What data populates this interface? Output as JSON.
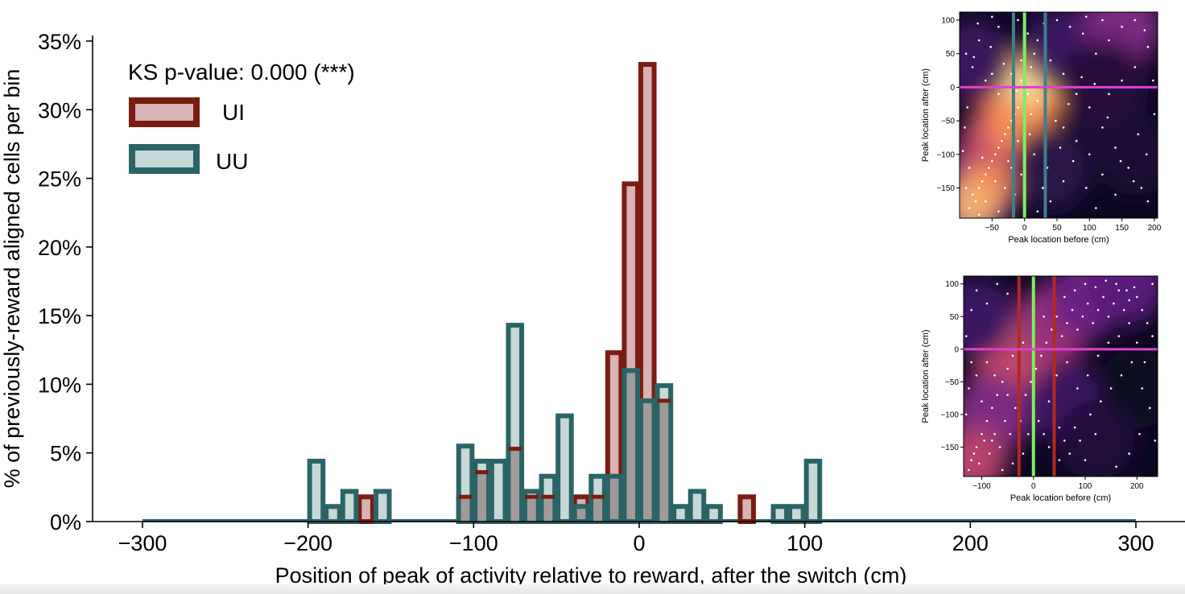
{
  "chart_data": [
    {
      "type": "bar",
      "subtype": "overlapping-histogram",
      "xlabel": "Position of peak of activity relative to reward, after the switch (cm)",
      "ylabel": "% of previously-reward aligned cells per bin",
      "xlim": [
        -300,
        300
      ],
      "ylim": [
        0,
        35
      ],
      "xticks": [
        -300,
        -200,
        -100,
        0,
        100,
        200,
        300
      ],
      "xtick_labels": [
        "−300",
        "−200",
        "−100",
        "0",
        "100",
        "200",
        "300"
      ],
      "yticks": [
        0,
        5,
        10,
        15,
        20,
        25,
        30,
        35
      ],
      "ytick_labels": [
        "0%",
        "5%",
        "10%",
        "15%",
        "20%",
        "25%",
        "30%",
        "35%"
      ],
      "bin_width": 10,
      "annotation": "KS p-value: 0.000 (***)",
      "legend_position": "top-left",
      "grid": false,
      "series": [
        {
          "name": "UI",
          "edge_color": "#7b1c12",
          "fill_color": "#d7b3b3",
          "bars": [
            {
              "x": -165,
              "y": 1.8
            },
            {
              "x": -105,
              "y": 1.8
            },
            {
              "x": -95,
              "y": 3.6
            },
            {
              "x": -75,
              "y": 5.3
            },
            {
              "x": -65,
              "y": 1.8
            },
            {
              "x": -55,
              "y": 1.8
            },
            {
              "x": -35,
              "y": 1.8
            },
            {
              "x": -25,
              "y": 1.8
            },
            {
              "x": -15,
              "y": 12.3
            },
            {
              "x": -5,
              "y": 24.6
            },
            {
              "x": 5,
              "y": 33.3
            },
            {
              "x": 15,
              "y": 8.8
            },
            {
              "x": 65,
              "y": 1.8
            }
          ]
        },
        {
          "name": "UU",
          "edge_color": "#2b6466",
          "fill_color": "#c6d8d8",
          "bars": [
            {
              "x": -195,
              "y": 4.4
            },
            {
              "x": -185,
              "y": 1.1
            },
            {
              "x": -175,
              "y": 2.2
            },
            {
              "x": -155,
              "y": 2.2
            },
            {
              "x": -105,
              "y": 5.5
            },
            {
              "x": -95,
              "y": 4.4
            },
            {
              "x": -85,
              "y": 4.4
            },
            {
              "x": -75,
              "y": 14.3
            },
            {
              "x": -65,
              "y": 2.2
            },
            {
              "x": -55,
              "y": 3.3
            },
            {
              "x": -45,
              "y": 7.7
            },
            {
              "x": -35,
              "y": 1.1
            },
            {
              "x": -25,
              "y": 3.3
            },
            {
              "x": -15,
              "y": 3.3
            },
            {
              "x": -5,
              "y": 11.0
            },
            {
              "x": 5,
              "y": 8.8
            },
            {
              "x": 15,
              "y": 9.9
            },
            {
              "x": 25,
              "y": 1.1
            },
            {
              "x": 35,
              "y": 2.2
            },
            {
              "x": 45,
              "y": 1.1
            },
            {
              "x": 85,
              "y": 1.1
            },
            {
              "x": 95,
              "y": 1.1
            },
            {
              "x": 105,
              "y": 4.4
            }
          ]
        }
      ]
    },
    {
      "type": "heatmap",
      "id": "inset-top",
      "xlabel": "Peak location before (cm)",
      "ylabel": "Peak location after (cm)",
      "xlim": [
        -100,
        205
      ],
      "ylim": [
        -195,
        112
      ],
      "xticks": [
        -50,
        0,
        50,
        100,
        150,
        200
      ],
      "xtick_labels": [
        "−50",
        "0",
        "50",
        "100",
        "150",
        "200"
      ],
      "yticks": [
        100,
        50,
        0,
        -50,
        -100,
        -150
      ],
      "ytick_labels": [
        "100",
        "50",
        "0",
        "−50",
        "−100",
        "−150"
      ],
      "colormap": "magma",
      "vertical_lines": [
        {
          "x": -17,
          "color": "#3f8088"
        },
        {
          "x": 0,
          "color": "#7cf060"
        },
        {
          "x": 32,
          "color": "#3f8088"
        }
      ],
      "horizontal_lines": [
        {
          "y": 0,
          "color": "#e040d0"
        }
      ],
      "points": [
        [
          -80,
          -160
        ],
        [
          -70,
          -150
        ],
        [
          -60,
          -130
        ],
        [
          -50,
          -110
        ],
        [
          -40,
          -90
        ],
        [
          -30,
          -70
        ],
        [
          -20,
          -50
        ],
        [
          -10,
          -30
        ],
        [
          0,
          -20
        ],
        [
          5,
          -10
        ],
        [
          -5,
          10
        ],
        [
          10,
          30
        ],
        [
          15,
          50
        ],
        [
          -15,
          -40
        ],
        [
          -25,
          -60
        ],
        [
          -35,
          -80
        ],
        [
          -45,
          -100
        ],
        [
          -55,
          -120
        ],
        [
          -65,
          -140
        ],
        [
          -75,
          -170
        ],
        [
          -85,
          -180
        ],
        [
          -90,
          -150
        ],
        [
          -60,
          -170
        ],
        [
          -30,
          -150
        ],
        [
          -20,
          -120
        ],
        [
          -10,
          -80
        ],
        [
          0,
          -60
        ],
        [
          10,
          -40
        ],
        [
          20,
          -20
        ],
        [
          25,
          0
        ],
        [
          -5,
          40
        ],
        [
          0,
          60
        ],
        [
          5,
          80
        ],
        [
          20,
          70
        ],
        [
          40,
          40
        ],
        [
          60,
          20
        ],
        [
          80,
          -10
        ],
        [
          100,
          -30
        ],
        [
          120,
          -60
        ],
        [
          140,
          -90
        ],
        [
          160,
          -120
        ],
        [
          180,
          -150
        ],
        [
          190,
          -170
        ],
        [
          150,
          90
        ],
        [
          170,
          100
        ],
        [
          130,
          70
        ],
        [
          110,
          50
        ],
        [
          90,
          80
        ],
        [
          70,
          90
        ],
        [
          50,
          100
        ],
        [
          30,
          95
        ],
        [
          -10,
          100
        ],
        [
          -40,
          90
        ],
        [
          -70,
          70
        ],
        [
          -90,
          50
        ],
        [
          -80,
          30
        ],
        [
          -60,
          10
        ],
        [
          -40,
          -10
        ],
        [
          -50,
          20
        ],
        [
          -20,
          20
        ],
        [
          60,
          -60
        ],
        [
          80,
          -80
        ],
        [
          100,
          -100
        ],
        [
          120,
          -130
        ],
        [
          140,
          -160
        ],
        [
          60,
          -140
        ],
        [
          40,
          -170
        ],
        [
          20,
          -185
        ],
        [
          0,
          -175
        ],
        [
          -15,
          -160
        ],
        [
          -40,
          -185
        ],
        [
          -70,
          -190
        ],
        [
          110,
          -180
        ],
        [
          130,
          -10
        ],
        [
          150,
          10
        ],
        [
          170,
          30
        ],
        [
          190,
          60
        ],
        [
          200,
          -40
        ],
        [
          175,
          -70
        ],
        [
          95,
          -150
        ],
        [
          75,
          -110
        ],
        [
          55,
          -90
        ],
        [
          35,
          -120
        ],
        [
          15,
          -100
        ],
        [
          -5,
          -130
        ],
        [
          -25,
          -110
        ],
        [
          -45,
          -140
        ],
        [
          -65,
          -105
        ],
        [
          -85,
          -120
        ],
        [
          -95,
          -95
        ],
        [
          -92,
          -60
        ],
        [
          -88,
          -30
        ],
        [
          -82,
          0
        ],
        [
          -78,
          45
        ],
        [
          -72,
          95
        ],
        [
          -52,
          60
        ],
        [
          -32,
          35
        ],
        [
          -12,
          -5
        ],
        [
          8,
          -70
        ],
        [
          28,
          -150
        ],
        [
          48,
          -50
        ],
        [
          68,
          -25
        ],
        [
          88,
          15
        ],
        [
          108,
          5
        ],
        [
          128,
          -45
        ],
        [
          148,
          -110
        ],
        [
          168,
          -140
        ],
        [
          188,
          -100
        ],
        [
          198,
          10
        ],
        [
          185,
          85
        ],
        [
          120,
          100
        ],
        [
          95,
          105
        ],
        [
          -50,
          105
        ]
      ]
    },
    {
      "type": "heatmap",
      "id": "inset-bottom",
      "xlabel": "Peak location before (cm)",
      "ylabel": "Peak location after (cm)",
      "xlim": [
        -135,
        240
      ],
      "ylim": [
        -195,
        112
      ],
      "xticks": [
        -100,
        0,
        100,
        200
      ],
      "xtick_labels": [
        "−100",
        "0",
        "100",
        "200"
      ],
      "yticks": [
        100,
        50,
        0,
        -50,
        -100,
        -150
      ],
      "ytick_labels": [
        "100",
        "50",
        "0",
        "−50",
        "−100",
        "−150"
      ],
      "colormap": "magma",
      "vertical_lines": [
        {
          "x": -28,
          "color": "#b02a1f"
        },
        {
          "x": 0,
          "color": "#7cf060"
        },
        {
          "x": 40,
          "color": "#b02a1f"
        }
      ],
      "horizontal_lines": [
        {
          "y": 0,
          "color": "#e040d0"
        }
      ],
      "points": [
        [
          -120,
          -170
        ],
        [
          -110,
          -150
        ],
        [
          -100,
          -130
        ],
        [
          -90,
          -110
        ],
        [
          -80,
          -90
        ],
        [
          -70,
          -70
        ],
        [
          -60,
          -50
        ],
        [
          -50,
          -30
        ],
        [
          -40,
          -10
        ],
        [
          -20,
          10
        ],
        [
          0,
          30
        ],
        [
          20,
          50
        ],
        [
          40,
          70
        ],
        [
          60,
          80
        ],
        [
          80,
          90
        ],
        [
          100,
          100
        ],
        [
          120,
          95
        ],
        [
          140,
          105
        ],
        [
          160,
          100
        ],
        [
          180,
          90
        ],
        [
          200,
          80
        ],
        [
          -125,
          -185
        ],
        [
          -115,
          -160
        ],
        [
          -105,
          -175
        ],
        [
          -95,
          -140
        ],
        [
          -85,
          -160
        ],
        [
          -75,
          -130
        ],
        [
          -65,
          -150
        ],
        [
          -55,
          -110
        ],
        [
          -45,
          -130
        ],
        [
          -35,
          -90
        ],
        [
          -25,
          -110
        ],
        [
          -15,
          -70
        ],
        [
          -5,
          -50
        ],
        [
          5,
          -30
        ],
        [
          15,
          -10
        ],
        [
          25,
          10
        ],
        [
          35,
          30
        ],
        [
          45,
          50
        ],
        [
          55,
          20
        ],
        [
          65,
          40
        ],
        [
          75,
          60
        ],
        [
          85,
          30
        ],
        [
          95,
          50
        ],
        [
          105,
          70
        ],
        [
          115,
          40
        ],
        [
          125,
          60
        ],
        [
          135,
          80
        ],
        [
          145,
          50
        ],
        [
          155,
          70
        ],
        [
          165,
          90
        ],
        [
          175,
          60
        ],
        [
          185,
          75
        ],
        [
          195,
          95
        ],
        [
          210,
          60
        ],
        [
          220,
          40
        ],
        [
          230,
          20
        ],
        [
          -130,
          -100
        ],
        [
          -125,
          -60
        ],
        [
          -120,
          -20
        ],
        [
          -130,
          20
        ],
        [
          -120,
          60
        ],
        [
          -110,
          90
        ],
        [
          -90,
          70
        ],
        [
          -70,
          100
        ],
        [
          -50,
          85
        ],
        [
          30,
          -80
        ],
        [
          40,
          -100
        ],
        [
          50,
          -120
        ],
        [
          60,
          -140
        ],
        [
          70,
          -160
        ],
        [
          50,
          -170
        ],
        [
          30,
          -150
        ],
        [
          20,
          -130
        ],
        [
          10,
          -110
        ],
        [
          0,
          -90
        ],
        [
          -10,
          -130
        ],
        [
          -20,
          -160
        ],
        [
          80,
          -120
        ],
        [
          90,
          -140
        ],
        [
          100,
          -170
        ],
        [
          110,
          -100
        ],
        [
          120,
          -130
        ],
        [
          130,
          -80
        ],
        [
          150,
          -60
        ],
        [
          170,
          -40
        ],
        [
          190,
          -20
        ],
        [
          210,
          -60
        ],
        [
          225,
          -90
        ],
        [
          205,
          -130
        ],
        [
          185,
          -160
        ],
        [
          160,
          -180
        ],
        [
          -60,
          -185
        ],
        [
          -40,
          -175
        ],
        [
          -80,
          -140
        ],
        [
          -100,
          -80
        ],
        [
          -110,
          -40
        ],
        [
          -90,
          -20
        ],
        [
          -75,
          -40
        ],
        [
          -50,
          -70
        ],
        [
          45,
          -40
        ],
        [
          65,
          -20
        ],
        [
          85,
          -60
        ],
        [
          105,
          -40
        ],
        [
          125,
          -10
        ],
        [
          145,
          10
        ],
        [
          165,
          20
        ],
        [
          185,
          40
        ],
        [
          200,
          10
        ],
        [
          215,
          -20
        ],
        [
          235,
          -140
        ],
        [
          230,
          100
        ]
      ]
    }
  ],
  "legend": {
    "annotation": "KS p-value: 0.000 (***)",
    "items": [
      {
        "label": "UI",
        "edge_color": "#7b1c12",
        "fill_color": "#d7b3b3"
      },
      {
        "label": "UU",
        "edge_color": "#2b6466",
        "fill_color": "#c6d8d8"
      }
    ]
  },
  "colors": {
    "overlap_fill": "#a09a9a",
    "axis": "#000000",
    "scatter_points": "#ffffff"
  }
}
